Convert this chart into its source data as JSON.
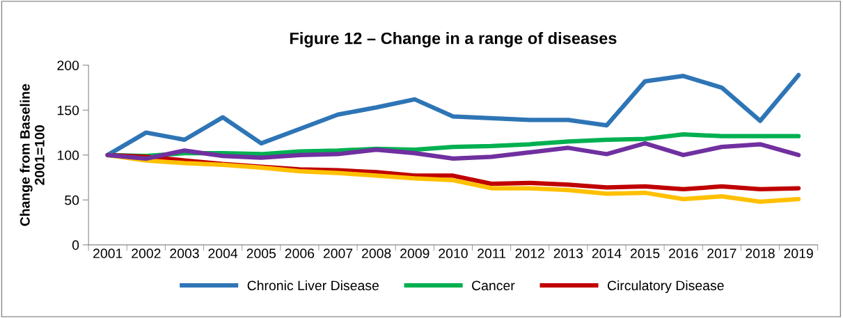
{
  "chart_data": {
    "type": "line",
    "title": "Figure 12 – Change in a range of diseases",
    "ylabel": "Change from Baseline\n2001=100",
    "categories": [
      "2001",
      "2002",
      "2003",
      "2004",
      "2005",
      "2006",
      "2007",
      "2008",
      "2009",
      "2010",
      "2011",
      "2012",
      "2013",
      "2014",
      "2015",
      "2016",
      "2017",
      "2018",
      "2019"
    ],
    "series": [
      {
        "name": "Chronic Liver Disease",
        "color": "#2e75b6",
        "values": [
          100,
          125,
          117,
          142,
          113,
          129,
          145,
          153,
          162,
          143,
          141,
          139,
          139,
          133,
          182,
          188,
          175,
          138,
          189
        ]
      },
      {
        "name": "Cancer",
        "color": "#00b050",
        "values": [
          100,
          99,
          102,
          102,
          101,
          104,
          105,
          107,
          106,
          109,
          110,
          112,
          115,
          117,
          118,
          123,
          121,
          121,
          121
        ]
      },
      {
        "name": "Circulatory Disease",
        "color": "#c00000",
        "values": [
          100,
          98,
          94,
          90,
          87,
          84,
          83,
          81,
          77,
          77,
          68,
          69,
          67,
          64,
          65,
          62,
          65,
          62,
          63
        ]
      },
      {
        "color": "#ffc000",
        "values": [
          100,
          94,
          91,
          89,
          86,
          82,
          80,
          77,
          74,
          72,
          63,
          63,
          61,
          57,
          58,
          51,
          54,
          48,
          51
        ]
      },
      {
        "color": "#7030a0",
        "values": [
          100,
          96,
          105,
          99,
          97,
          100,
          101,
          106,
          102,
          96,
          98,
          103,
          108,
          101,
          113,
          100,
          109,
          112,
          100
        ]
      }
    ],
    "ylim": [
      0,
      200
    ],
    "yticks": [
      0,
      50,
      100,
      150,
      200
    ],
    "grid": false,
    "legend": "bottom",
    "marker": "none",
    "line_style": "solid"
  }
}
